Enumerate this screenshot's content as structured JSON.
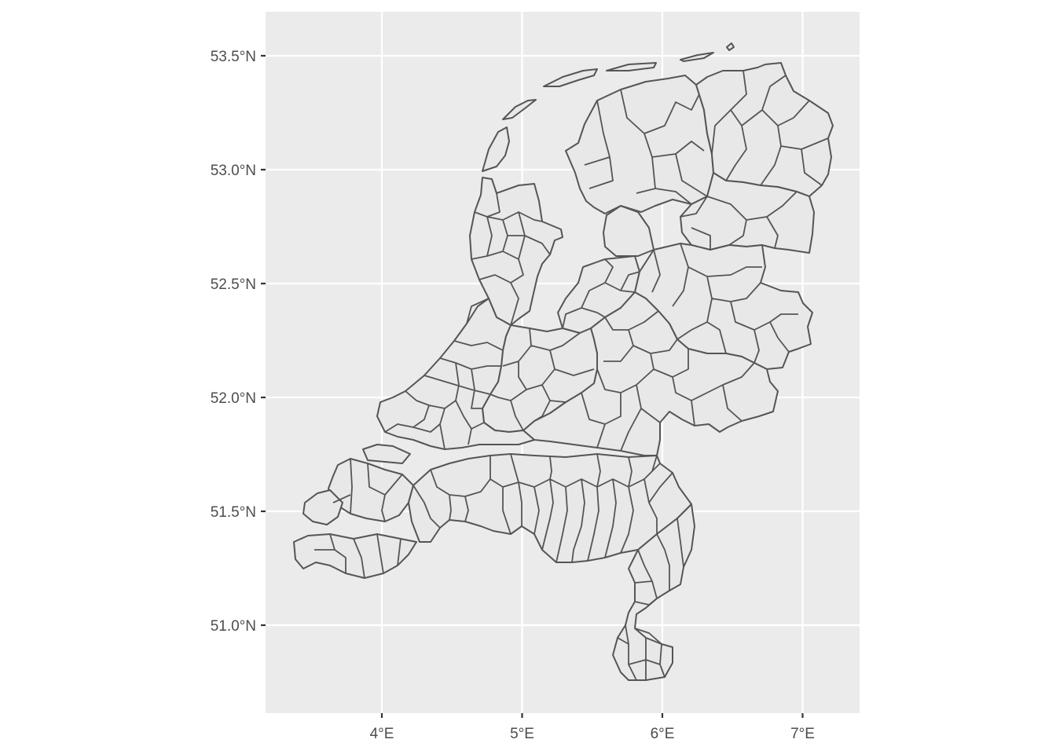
{
  "map": {
    "type": "choropleth-outline",
    "subject": "Netherlands municipalities",
    "projection": "lon/lat",
    "panel_background": "#EBEBEB",
    "polygon_fill": "#E8E8E8",
    "polygon_stroke": "#555555",
    "grid": true,
    "x_axis": {
      "ticks": [
        4,
        5,
        6,
        7
      ],
      "tick_labels": [
        "4°E",
        "5°E",
        "6°E",
        "7°E"
      ]
    },
    "y_axis": {
      "ticks": [
        51.0,
        51.5,
        52.0,
        52.5,
        53.0,
        53.5
      ],
      "tick_labels": [
        "51.0°N",
        "51.5°N",
        "52.0°N",
        "52.5°N",
        "53.0°N",
        "53.5°N"
      ]
    }
  }
}
